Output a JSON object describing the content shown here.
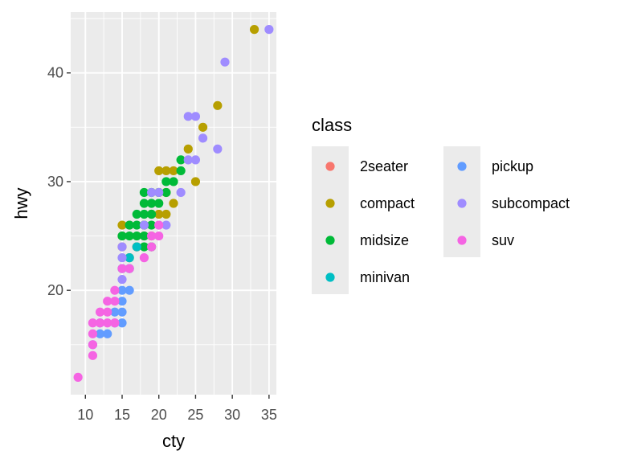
{
  "chart_data": {
    "type": "scatter",
    "title": "",
    "xlabel": "cty",
    "ylabel": "hwy",
    "xlim": [
      8,
      36
    ],
    "ylim": [
      10.4,
      45.6
    ],
    "x_ticks": [
      10,
      15,
      20,
      25,
      30,
      35
    ],
    "y_ticks": [
      20,
      30,
      40
    ],
    "grid": true,
    "legend": {
      "title": "class",
      "placement": "right"
    },
    "series": [
      {
        "name": "2seater",
        "color": "#F8766D",
        "points": [
          [
            15,
            24
          ],
          [
            15,
            25
          ],
          [
            16,
            26
          ],
          [
            18,
            25
          ],
          [
            17,
            24
          ]
        ]
      },
      {
        "name": "compact",
        "color": "#B79F00",
        "points": [
          [
            33,
            44
          ],
          [
            28,
            37
          ],
          [
            26,
            35
          ],
          [
            24,
            33
          ],
          [
            25,
            30
          ],
          [
            20,
            31
          ],
          [
            21,
            31
          ],
          [
            22,
            31
          ],
          [
            20,
            29
          ],
          [
            21,
            29
          ],
          [
            22,
            28
          ],
          [
            19,
            27
          ],
          [
            20,
            27
          ],
          [
            21,
            27
          ],
          [
            18,
            26
          ],
          [
            19,
            25
          ],
          [
            17,
            24
          ],
          [
            16,
            23
          ],
          [
            15,
            26
          ]
        ]
      },
      {
        "name": "midsize",
        "color": "#00BA38",
        "points": [
          [
            23,
            32
          ],
          [
            23,
            31
          ],
          [
            21,
            30
          ],
          [
            22,
            30
          ],
          [
            18,
            29
          ],
          [
            19,
            29
          ],
          [
            20,
            29
          ],
          [
            21,
            29
          ],
          [
            18,
            28
          ],
          [
            19,
            28
          ],
          [
            20,
            28
          ],
          [
            17,
            27
          ],
          [
            18,
            27
          ],
          [
            19,
            27
          ],
          [
            16,
            26
          ],
          [
            17,
            26
          ],
          [
            18,
            26
          ],
          [
            19,
            26
          ],
          [
            16,
            25
          ],
          [
            17,
            25
          ],
          [
            18,
            25
          ],
          [
            15,
            25
          ],
          [
            19,
            24
          ],
          [
            18,
            24
          ]
        ]
      },
      {
        "name": "minivan",
        "color": "#00BFC4",
        "points": [
          [
            16,
            22
          ],
          [
            15,
            22
          ],
          [
            17,
            24
          ],
          [
            16,
            23
          ]
        ]
      },
      {
        "name": "pickup",
        "color": "#619CFF",
        "points": [
          [
            16,
            20
          ],
          [
            15,
            20
          ],
          [
            15,
            19
          ],
          [
            14,
            18
          ],
          [
            15,
            18
          ],
          [
            13,
            16
          ],
          [
            12,
            16
          ],
          [
            14,
            17
          ],
          [
            15,
            17
          ],
          [
            11,
            15
          ],
          [
            12,
            17
          ]
        ]
      },
      {
        "name": "subcompact",
        "color": "#9F8CFF",
        "points": [
          [
            35,
            44
          ],
          [
            29,
            41
          ],
          [
            24,
            36
          ],
          [
            25,
            36
          ],
          [
            26,
            34
          ],
          [
            28,
            33
          ],
          [
            24,
            32
          ],
          [
            25,
            32
          ],
          [
            23,
            29
          ],
          [
            19,
            29
          ],
          [
            20,
            29
          ],
          [
            21,
            26
          ],
          [
            20,
            26
          ],
          [
            18,
            26
          ],
          [
            15,
            23
          ],
          [
            15,
            24
          ],
          [
            15,
            21
          ]
        ]
      },
      {
        "name": "suv",
        "color": "#F564E3",
        "points": [
          [
            9,
            12
          ],
          [
            11,
            14
          ],
          [
            11,
            15
          ],
          [
            11,
            16
          ],
          [
            11,
            17
          ],
          [
            12,
            17
          ],
          [
            13,
            17
          ],
          [
            14,
            17
          ],
          [
            12,
            18
          ],
          [
            13,
            18
          ],
          [
            14,
            19
          ],
          [
            13,
            19
          ],
          [
            14,
            20
          ],
          [
            15,
            22
          ],
          [
            16,
            22
          ],
          [
            18,
            23
          ],
          [
            19,
            24
          ],
          [
            19,
            25
          ],
          [
            20,
            26
          ],
          [
            20,
            25
          ]
        ]
      }
    ],
    "legend_items": [
      {
        "name": "2seater",
        "color": "#F8766D"
      },
      {
        "name": "compact",
        "color": "#B79F00"
      },
      {
        "name": "midsize",
        "color": "#00BA38"
      },
      {
        "name": "minivan",
        "color": "#00BFC4"
      },
      {
        "name": "pickup",
        "color": "#619CFF"
      },
      {
        "name": "subcompact",
        "color": "#9F8CFF"
      },
      {
        "name": "suv",
        "color": "#F564E3"
      }
    ]
  }
}
